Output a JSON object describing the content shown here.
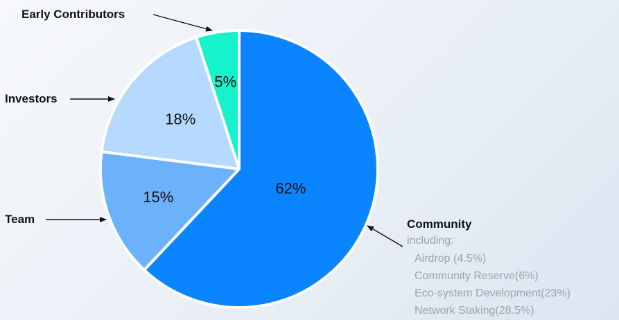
{
  "chart_data": {
    "type": "pie",
    "start_angle_deg": 0,
    "direction": "clockwise",
    "slices": [
      {
        "name": "Community",
        "value": 62,
        "label": "62%",
        "color": "#0a84ff"
      },
      {
        "name": "Team",
        "value": 15,
        "label": "15%",
        "color": "#6cb2fb"
      },
      {
        "name": "Investors",
        "value": 18,
        "label": "18%",
        "color": "#b6d9ff"
      },
      {
        "name": "Early Contributors",
        "value": 5,
        "label": "5%",
        "color": "#15f2cc"
      }
    ],
    "community_breakdown": {
      "heading": "including:",
      "items": [
        "Airdrop (4.5%)",
        "Community Reserve(6%)",
        "Eco-system Development(23%)",
        "Network Staking(28.5%)"
      ]
    }
  }
}
